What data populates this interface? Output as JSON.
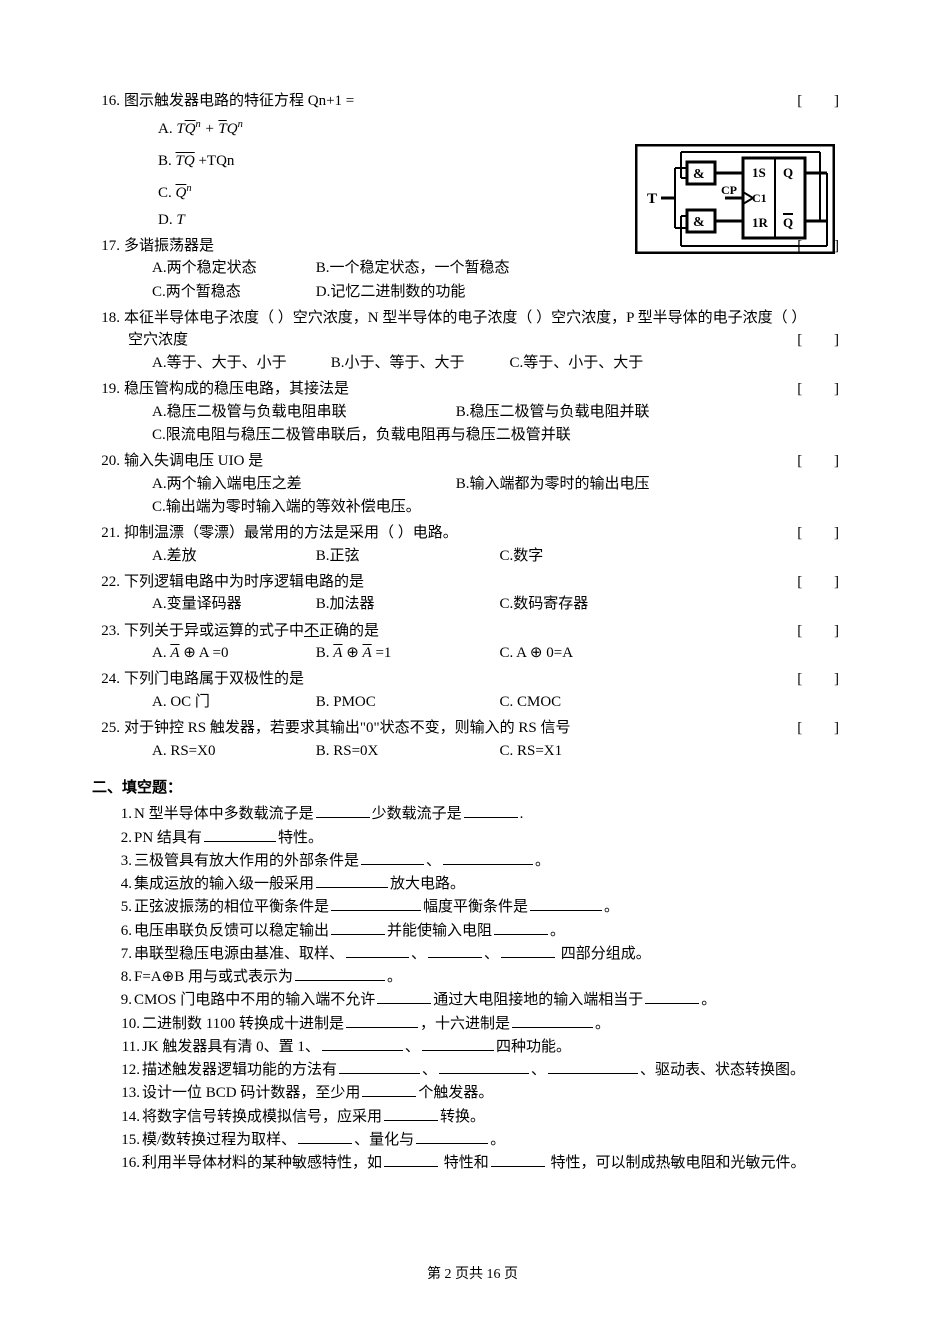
{
  "q16": {
    "stem_num": "16.",
    "stem_text": "图示触发器电路的特征方程 Qn+1 =",
    "bracket": "[ ]",
    "optA_prefix": "A.",
    "optB_prefix": "B.",
    "optB_tail": " +TQn",
    "optC_prefix": "C.",
    "optD_prefix": "D.",
    "optD_val": "T",
    "circuit": {
      "border_color": "#000000",
      "label_T": "T",
      "label_CP": "CP",
      "label_1S": "1S",
      "label_Q": "Q",
      "label_C1": "C1",
      "label_1R": "1R",
      "label_Qbar": "Q",
      "gate_sym": "&"
    }
  },
  "q17": {
    "num": "17.",
    "stem": "多谐振荡器是",
    "bracket": "[ ]",
    "A": "A.两个稳定状态",
    "B": "B.一个稳定状态，一个暂稳态",
    "C": "C.两个暂稳态",
    "D": "D.记忆二进制数的功能"
  },
  "q18": {
    "num": "18.",
    "stem": "本征半导体电子浓度（  ）空穴浓度，N 型半导体的电子浓度（  ）空穴浓度，P 型半导体的电子浓度（  ）",
    "stem2": "空穴浓度",
    "bracket": "[ ]",
    "A": "A.等于、大于、小于",
    "B": "B.小于、等于、大于",
    "C": "C.等于、小于、大于"
  },
  "q19": {
    "num": "19.",
    "stem": "稳压管构成的稳压电路，其接法是",
    "bracket": "[ ]",
    "A": "A.稳压二极管与负载电阻串联",
    "B": "B.稳压二极管与负载电阻并联",
    "C": "C.限流电阻与稳压二极管串联后，负载电阻再与稳压二极管并联"
  },
  "q20": {
    "num": "20.",
    "stem": "输入失调电压 UIO 是",
    "bracket": "[ ]",
    "A": "A.两个输入端电压之差",
    "B": "B.输入端都为零时的输出电压",
    "C": "C.输出端为零时输入端的等效补偿电压。"
  },
  "q21": {
    "num": "21.",
    "stem": "抑制温漂（零漂）最常用的方法是采用（  ）电路。",
    "bracket": "[ ]",
    "A": "A.差放",
    "B": "B.正弦",
    "C": "C.数字"
  },
  "q22": {
    "num": "22.",
    "stem": "下列逻辑电路中为时序逻辑电路的是",
    "bracket": "[ ]",
    "A": "A.变量译码器",
    "B": "B.加法器",
    "C": "C.数码寄存器"
  },
  "q23": {
    "num": "23.",
    "stem_pre": "下列关于异或运算的式子中",
    "stem_under": "不",
    "stem_post": "正确的是",
    "bracket": "[ ]",
    "A_prefix": "A.",
    "A_suffix": " ⊕ A =0",
    "B_prefix": "B.",
    "B_mid": " ⊕ ",
    "B_suffix": " =1",
    "C": "C. A ⊕ 0=A"
  },
  "q24": {
    "num": "24.",
    "stem": "下列门电路属于双极性的是",
    "bracket": "[ ]",
    "A": "A. OC 门",
    "B": "B. PMOC",
    "C": "C. CMOC"
  },
  "q25": {
    "num": "25.",
    "stem": "对于钟控 RS 触发器，若要求其输出\"0\"状态不变，则输入的 RS 信号",
    "bracket": "[ ]",
    "A": "A. RS=X0",
    "B": "B. RS=0X",
    "C": "C. RS=X1"
  },
  "fill": {
    "title": "二、填空题：",
    "items": [
      {
        "n": "1.",
        "text": "N 型半导体中多数载流子是______少数载流子是______."
      },
      {
        "n": "2.",
        "text": "PN 结具有________特性。"
      },
      {
        "n": "3.",
        "text": "三极管具有放大作用的外部条件是_______、__________。"
      },
      {
        "n": "4.",
        "text": "集成运放的输入级一般采用________放大电路。"
      },
      {
        "n": "5.",
        "text": "正弦波振荡的相位平衡条件是__________幅度平衡条件是________。"
      },
      {
        "n": "6.",
        "text": "电压串联负反馈可以稳定输出______并能使输入电阻______。"
      },
      {
        "n": "7.",
        "text": "串联型稳压电源由基准、取样、_______、______、______  四部分组成。"
      },
      {
        "n": "8.",
        "text": "F=A⊕B 用与或式表示为__________。"
      },
      {
        "n": "9.",
        "text": "CMOS 门电路中不用的输入端不允许______通过大电阻接地的输入端相当于______。"
      },
      {
        "n": "10.",
        "text": "二进制数 1100 转换成十进制是________，十六进制是_________。"
      },
      {
        "n": "11.",
        "text": "JK 触发器具有清 0、置 1、_________、________四种功能。"
      },
      {
        "n": "12.",
        "text": "描述触发器逻辑功能的方法有_________、__________、__________、驱动表、状态转换图。"
      },
      {
        "n": "13.",
        "text": "设计一位 BCD 码计数器，至少用______个触发器。"
      },
      {
        "n": "14.",
        "text": "将数字信号转换成模拟信号，应采用______转换。"
      },
      {
        "n": "15.",
        "text": "模/数转换过程为取样、______、量化与________。"
      },
      {
        "n": "16.",
        "text": "利用半导体材料的某种敏感特性，如______ 特性和______ 特性，可以制成热敏电阻和光敏元件。"
      }
    ]
  },
  "footer": "第 2 页共 16 页",
  "style": {
    "text_color": "#000000",
    "bg_color": "#ffffff",
    "font_size_body": 15,
    "font_size_footer": 14
  }
}
